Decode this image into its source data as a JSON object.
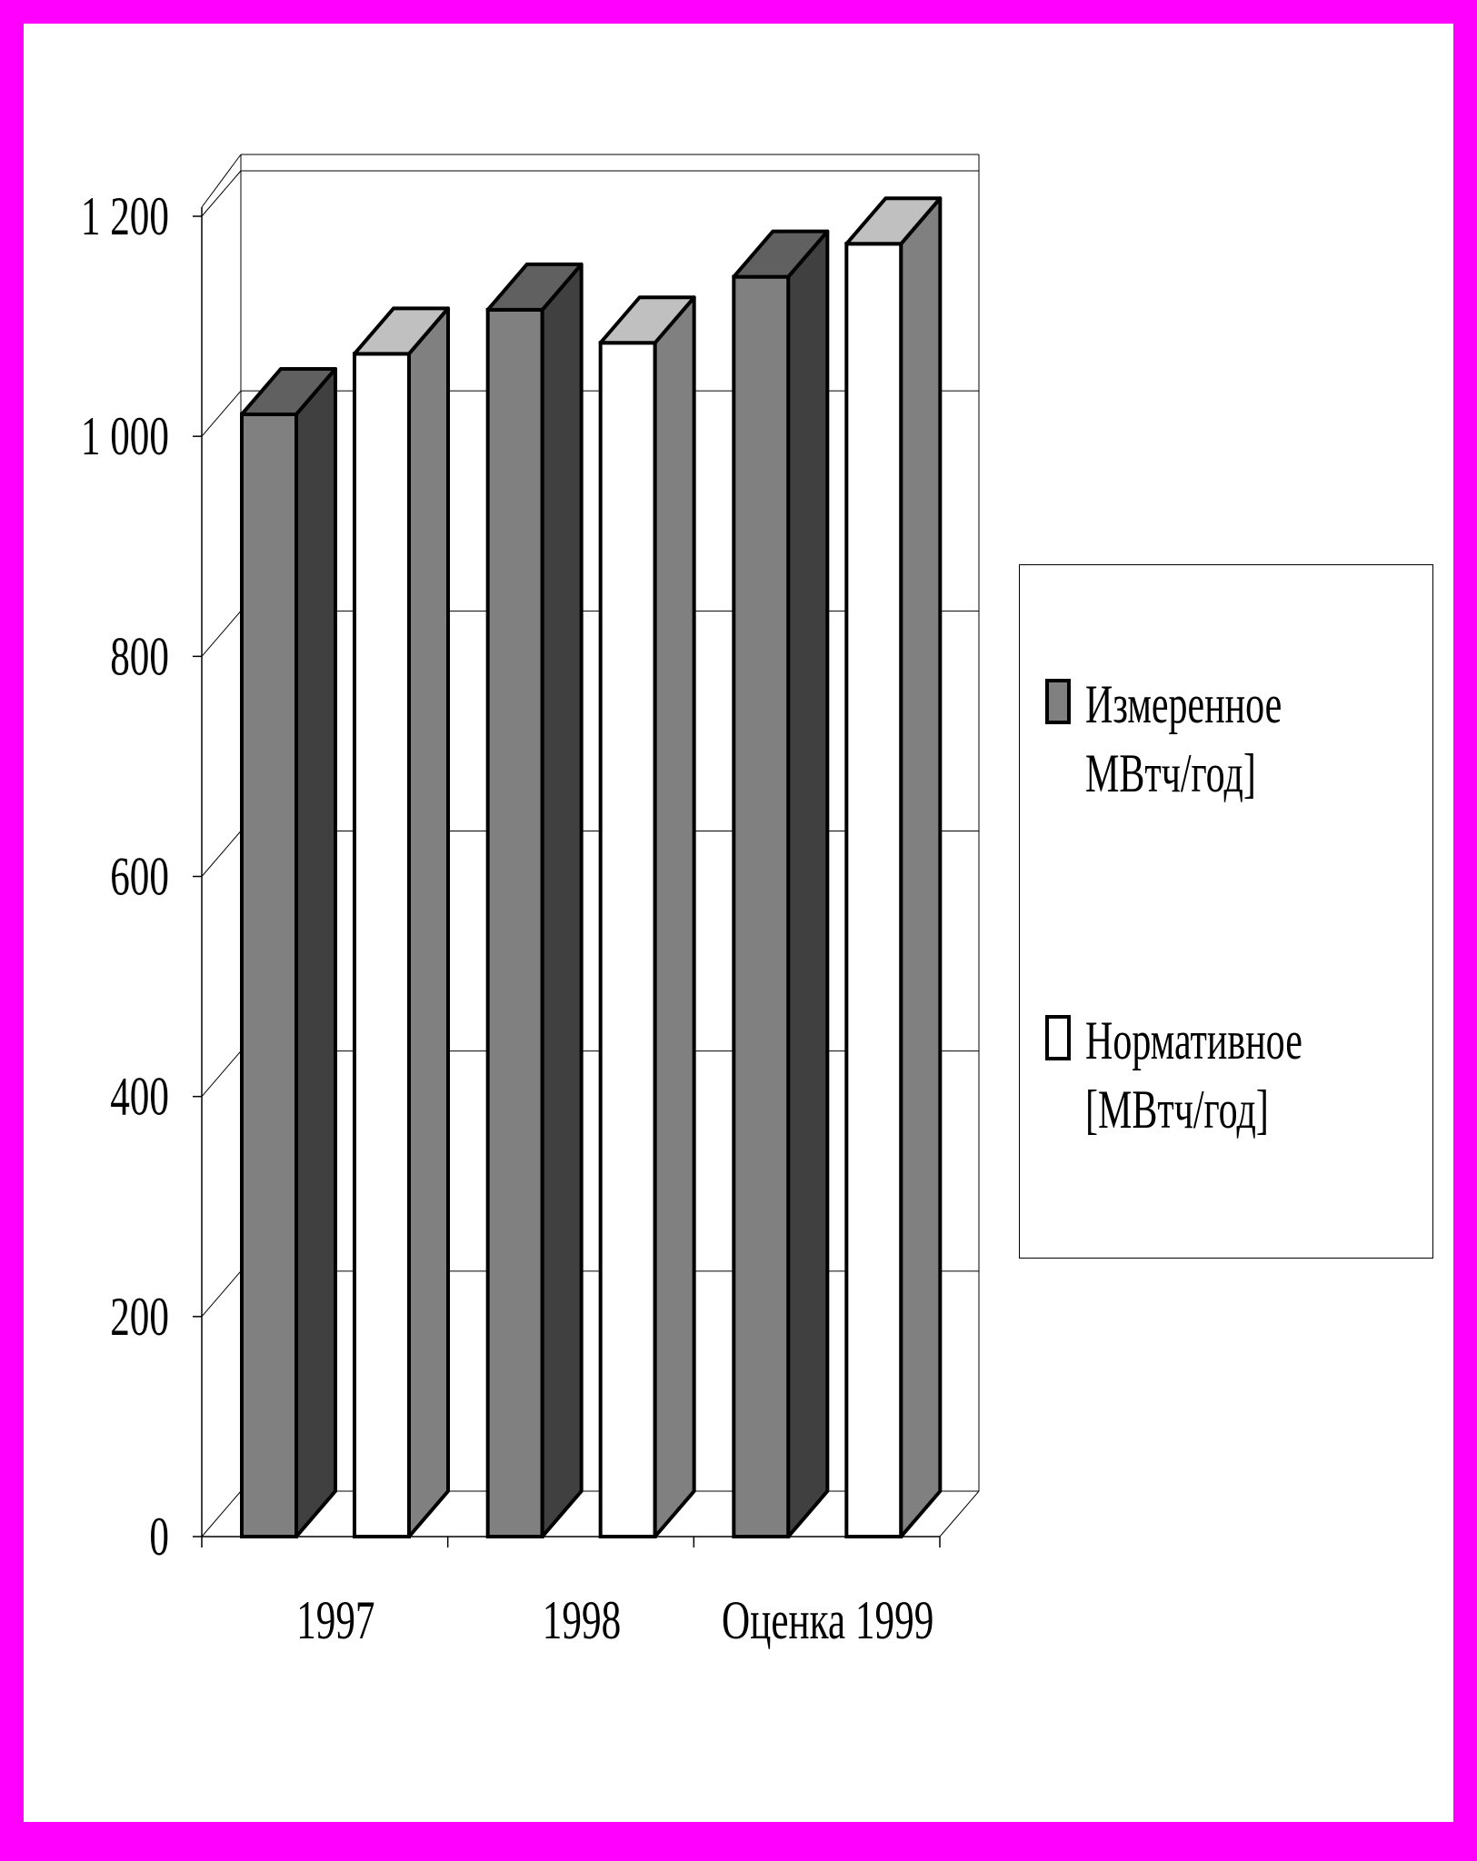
{
  "chart_data": {
    "type": "bar",
    "categories": [
      "1997",
      "1998",
      "Оценка 1999"
    ],
    "series": [
      {
        "name": "Измеренное МВтч/год]",
        "values": [
          1020,
          1115,
          1145
        ],
        "color": "#808080",
        "side_color": "#404040",
        "top_color": "#606060"
      },
      {
        "name": "Нормативное [МВтч/год]",
        "values": [
          1075,
          1085,
          1175
        ],
        "color": "#ffffff",
        "side_color": "#808080",
        "top_color": "#c0c0c0"
      }
    ],
    "ylim": [
      0,
      1200
    ],
    "yticks": [
      0,
      200,
      400,
      600,
      800,
      1000,
      1200
    ],
    "ytick_labels": [
      "0",
      "200",
      "400",
      "600",
      "800",
      "1 000",
      "1 200"
    ],
    "grid": true,
    "legend_position": "right"
  },
  "legend": {
    "items": [
      {
        "line1": "Измеренное",
        "line2": "МВтч/год]",
        "color": "#808080"
      },
      {
        "line1": "Нормативное",
        "line2": "[МВтч/год]",
        "color": "#ffffff"
      }
    ]
  }
}
